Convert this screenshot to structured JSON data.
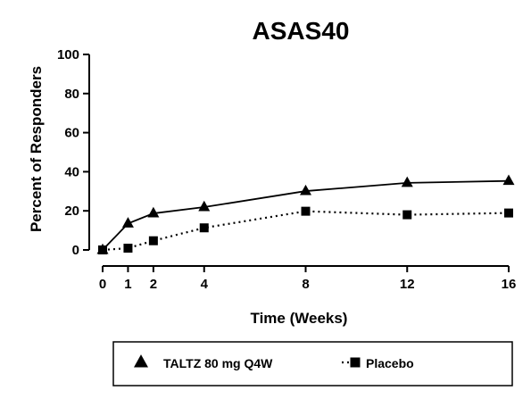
{
  "chart_data": {
    "type": "line",
    "title": "ASAS40",
    "xlabel": "Time (Weeks)",
    "ylabel": "Percent of Responders",
    "x": [
      0,
      1,
      2,
      4,
      8,
      12,
      16
    ],
    "xlim": [
      0,
      16
    ],
    "ylim": [
      0,
      100
    ],
    "xticks": [
      "0",
      "1",
      "2",
      "4",
      "8",
      "12",
      "16"
    ],
    "yticks": [
      "0",
      "20",
      "40",
      "60",
      "80",
      "100"
    ],
    "grid": false,
    "legend_position": "bottom",
    "series": [
      {
        "name": "TALTZ 80 mg Q4W",
        "marker": "triangle",
        "line": "solid",
        "values": [
          0,
          13.5,
          18.7,
          21.9,
          30.1,
          34.3,
          35.3
        ]
      },
      {
        "name": "Placebo",
        "marker": "square",
        "line": "dotted",
        "values": [
          0,
          0.9,
          4.7,
          11.3,
          19.8,
          18.0,
          18.9
        ]
      }
    ]
  }
}
